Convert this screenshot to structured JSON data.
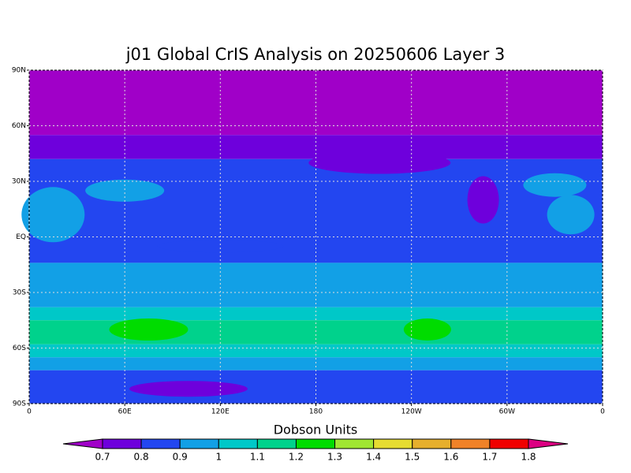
{
  "title": "j01 Global CrIS Analysis on 20250606 Layer 3",
  "map": {
    "xlim": [
      0,
      360
    ],
    "ylim": [
      -90,
      90
    ],
    "lat_ticks": [
      {
        "value": 90,
        "label": "90N"
      },
      {
        "value": 60,
        "label": "60N"
      },
      {
        "value": 30,
        "label": "30N"
      },
      {
        "value": 0,
        "label": "EQ"
      },
      {
        "value": -30,
        "label": "30S"
      },
      {
        "value": -60,
        "label": "60S"
      },
      {
        "value": -90,
        "label": "90S"
      }
    ],
    "lon_ticks": [
      0,
      {
        "value": 60,
        "label": "60E"
      },
      {
        "value": 120,
        "label": "120E"
      },
      180,
      {
        "value": 240,
        "label": "120W"
      },
      {
        "value": 300,
        "label": "60W"
      },
      {
        "value": 360,
        "label": "0"
      }
    ],
    "grid": true
  },
  "colorbar": {
    "label": "Dobson Units",
    "levels": [
      0.7,
      0.8,
      0.9,
      1,
      1.1,
      1.2,
      1.3,
      1.4,
      1.5,
      1.6,
      1.7,
      1.8
    ],
    "colors": [
      "#a000c8",
      "#6e00dc",
      "#2346f0",
      "#12a0e6",
      "#00c8c8",
      "#00d28c",
      "#00dc00",
      "#a0e632",
      "#e6dc32",
      "#e6af2d",
      "#f08228",
      "#f00000",
      "#dc0082"
    ]
  }
}
